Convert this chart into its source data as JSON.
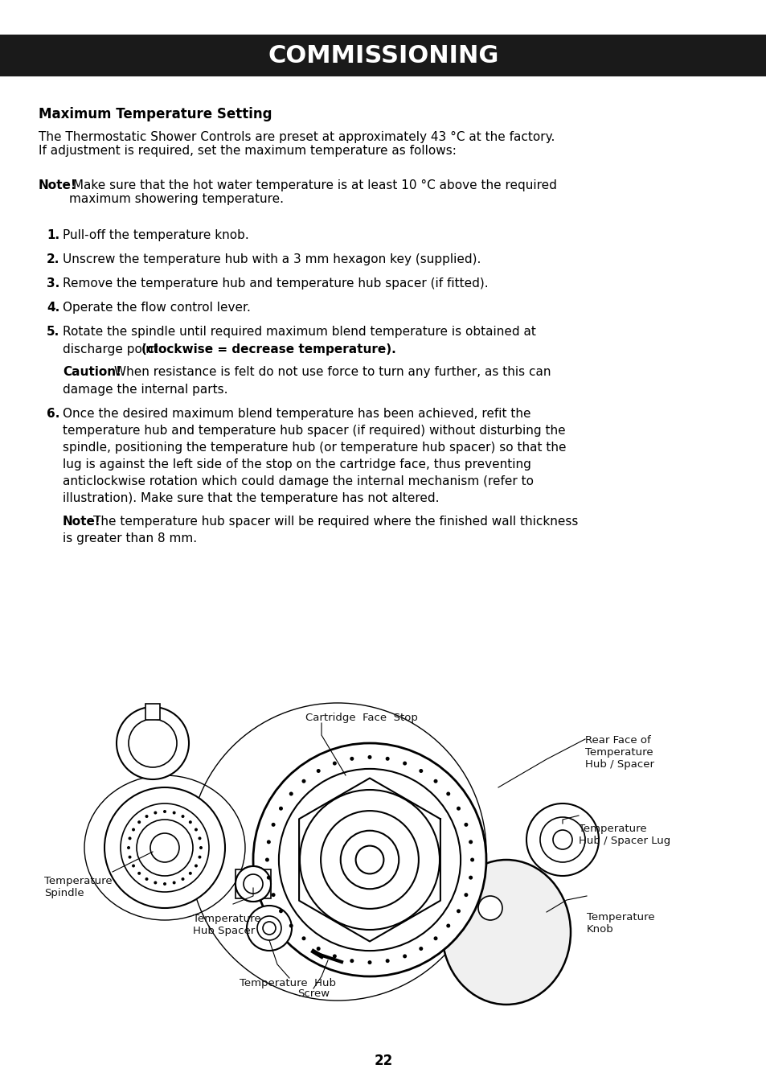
{
  "title": "COMMISSIONING",
  "title_bg": "#1a1a1a",
  "title_color": "#ffffff",
  "page_bg": "#ffffff",
  "text_color": "#000000",
  "subtitle": "Maximum Temperature Setting",
  "para1": "The Thermostatic Shower Controls are preset at approximately 43 °C at the factory.\nIf adjustment is required, set the maximum temperature as follows:",
  "note1_bold": "Note!",
  "note1_rest": " Make sure that the hot water temperature is at least 10 °C above the required\nmaximum showering temperature.",
  "steps": [
    "Pull-off the temperature knob.",
    "Unscrew the temperature hub with a 3 mm hexagon key (supplied).",
    "Remove the temperature hub and temperature hub spacer (if fitted).",
    "Operate the flow control lever.",
    "Rotate the spindle until required maximum blend temperature is obtained at\ndischarge point (clockwise = decrease temperature).\n\nCaution! When resistance is felt do not use force to turn any further, as this can\ndamage the internal parts.",
    "Once the desired maximum blend temperature has been achieved, refit the\ntemperature hub and temperature hub spacer (if required) without disturbing the\nspindle, positioning the temperature hub (or temperature hub spacer) so that the\nlug is against the left side of the stop on the cartridge face, thus preventing\nanticlockwise rotation which could damage the internal mechanism (refer to\nillustration). Make sure that the temperature has not altered.\n\nNote! The temperature hub spacer will be required where the finished wall thickness\nis greater than 8 mm."
  ],
  "page_number": "22",
  "diagram_labels": {
    "cartridge_face_stop": "Cartridge  Face  Stop",
    "rear_face": "Rear Face of\nTemperature\nHub / Spacer",
    "temp_hub_spacer_lug": "Temperature\nHub / Spacer Lug",
    "temp_knob": "Temperature\nKnob",
    "temp_hub": "Temperature  Hub",
    "screw": "Screw",
    "temp_hub_spacer": "Temperature\nHub Spacer",
    "temp_spindle": "Temperature\nSpindle"
  }
}
